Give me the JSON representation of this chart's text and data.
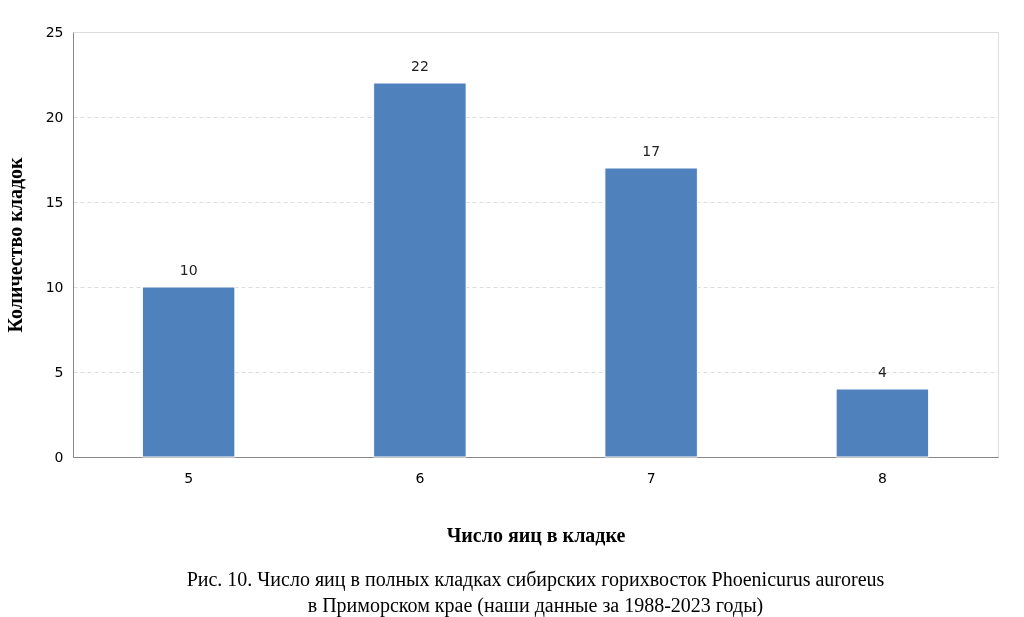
{
  "chart_data": {
    "type": "bar",
    "categories": [
      "5",
      "6",
      "7",
      "8"
    ],
    "values": [
      10,
      22,
      17,
      4
    ],
    "color": "#4f81bd",
    "xlabel": "Число яиц в кладке",
    "ylabel": "Количество кладок",
    "ylim": [
      0,
      25
    ],
    "yticks": [
      0,
      5,
      10,
      15,
      20,
      25
    ],
    "grid": "y",
    "data_labels": true,
    "annotations": [
      "Рис. 10. Число яиц в полных кладках сибирских горихвосток Phoenicurus auroreus",
      "в Приморском крае (наши данные за 1988-2023 годы)"
    ]
  }
}
